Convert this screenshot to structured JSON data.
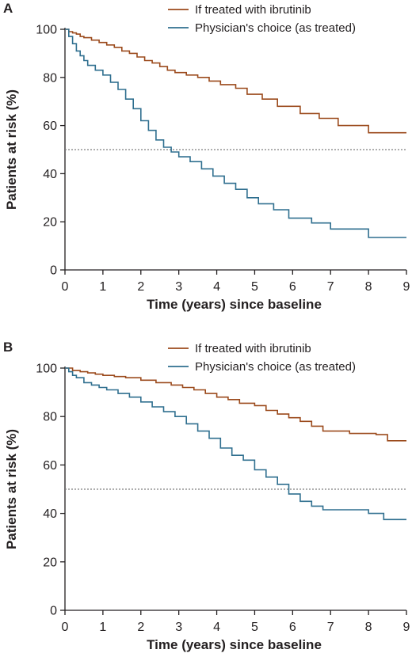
{
  "chart_data": [
    {
      "type": "line",
      "panel_label": "A",
      "xlabel": "Time (years) since baseline",
      "ylabel": "Patients at risk (%)",
      "xlim": [
        0,
        9
      ],
      "ylim": [
        0,
        100
      ],
      "xticks": [
        0,
        1,
        2,
        3,
        4,
        5,
        6,
        7,
        8,
        9
      ],
      "yticks": [
        0,
        20,
        40,
        60,
        80,
        100
      ],
      "grid": false,
      "legend_position": "top-right",
      "reference_line": {
        "y": 50,
        "style": "dotted",
        "color": "#7f7f7f"
      },
      "series": [
        {
          "name": "If treated with ibrutinib",
          "color": "#9b4a1c",
          "step": true,
          "x": [
            0,
            0.1,
            0.2,
            0.3,
            0.4,
            0.5,
            0.7,
            0.9,
            1.1,
            1.3,
            1.5,
            1.7,
            1.9,
            2.1,
            2.3,
            2.5,
            2.7,
            2.9,
            3.2,
            3.5,
            3.8,
            4.1,
            4.5,
            4.8,
            5.2,
            5.6,
            6.2,
            6.7,
            7.2,
            8.0,
            9.0
          ],
          "y": [
            100,
            99,
            98.5,
            98,
            97,
            96.5,
            95.5,
            94.5,
            93.5,
            92.5,
            91,
            90,
            88.5,
            87,
            86,
            84.5,
            83,
            82,
            81,
            80,
            78.5,
            77,
            75.5,
            73,
            71,
            68,
            65,
            63,
            60,
            57,
            57
          ]
        },
        {
          "name": "Physician's choice (as treated)",
          "color": "#2f6f8f",
          "step": true,
          "x": [
            0,
            0.1,
            0.2,
            0.3,
            0.4,
            0.5,
            0.6,
            0.8,
            1.0,
            1.2,
            1.4,
            1.6,
            1.8,
            2.0,
            2.2,
            2.4,
            2.6,
            2.8,
            3.0,
            3.3,
            3.6,
            3.9,
            4.2,
            4.5,
            4.8,
            5.1,
            5.5,
            5.9,
            6.5,
            7.0,
            8.0,
            9.0
          ],
          "y": [
            100,
            97,
            94,
            91,
            89,
            87,
            85,
            83,
            81,
            78,
            75,
            71,
            67,
            62,
            58,
            54,
            51,
            49,
            47,
            45,
            42,
            39,
            36,
            33.5,
            30,
            27.5,
            25,
            21.5,
            19.5,
            17,
            13.5,
            13.5
          ]
        }
      ]
    },
    {
      "type": "line",
      "panel_label": "B",
      "xlabel": "Time (years) since baseline",
      "ylabel": "Patients at risk (%)",
      "xlim": [
        0,
        9
      ],
      "ylim": [
        0,
        100
      ],
      "xticks": [
        0,
        1,
        2,
        3,
        4,
        5,
        6,
        7,
        8,
        9
      ],
      "yticks": [
        0,
        20,
        40,
        60,
        80,
        100
      ],
      "grid": false,
      "legend_position": "top-right",
      "reference_line": {
        "y": 50,
        "style": "dotted",
        "color": "#7f7f7f"
      },
      "series": [
        {
          "name": "If treated with ibrutinib",
          "color": "#9b4a1c",
          "step": true,
          "x": [
            0,
            0.2,
            0.4,
            0.6,
            0.8,
            1.0,
            1.3,
            1.6,
            2.0,
            2.4,
            2.8,
            3.1,
            3.4,
            3.7,
            4.0,
            4.3,
            4.6,
            5.0,
            5.3,
            5.6,
            5.9,
            6.2,
            6.5,
            6.8,
            7.5,
            8.2,
            8.5,
            9.0
          ],
          "y": [
            100,
            99,
            98.5,
            98,
            97.5,
            97,
            96.5,
            96,
            95,
            94,
            93,
            92,
            91,
            89.5,
            88,
            87,
            85.5,
            84.5,
            82.5,
            81,
            79.5,
            78,
            76,
            74,
            73,
            72.5,
            70,
            70
          ]
        },
        {
          "name": "Physician's choice (as treated)",
          "color": "#2f6f8f",
          "step": true,
          "x": [
            0,
            0.1,
            0.2,
            0.3,
            0.5,
            0.7,
            0.9,
            1.1,
            1.4,
            1.7,
            2.0,
            2.3,
            2.6,
            2.9,
            3.2,
            3.5,
            3.8,
            4.1,
            4.4,
            4.7,
            5.0,
            5.3,
            5.6,
            5.9,
            6.2,
            6.5,
            6.8,
            7.5,
            8.0,
            8.4,
            9.0
          ],
          "y": [
            100,
            98.5,
            97,
            96,
            94,
            93,
            92,
            91,
            89.5,
            88,
            86,
            84,
            82,
            80,
            77,
            74,
            71,
            67,
            64,
            62,
            58,
            55,
            52,
            48,
            45,
            43,
            41.5,
            41.5,
            40,
            37.5,
            37.5
          ]
        }
      ]
    }
  ]
}
